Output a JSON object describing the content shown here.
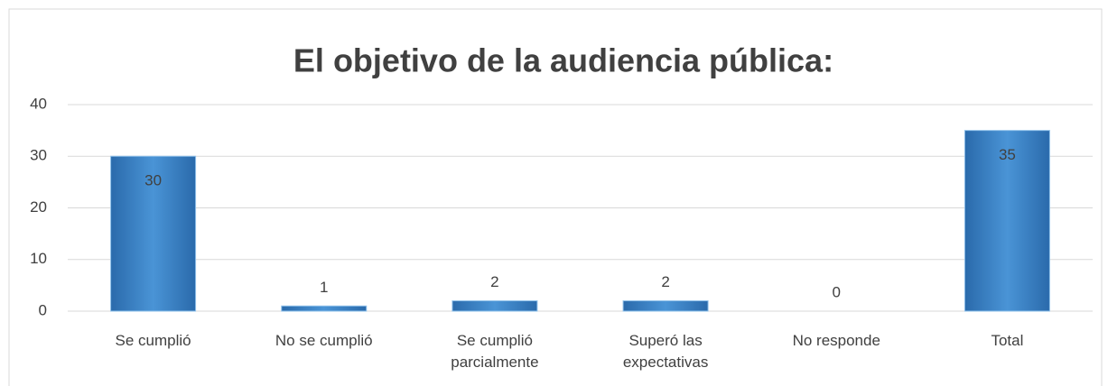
{
  "chart_data": {
    "type": "bar",
    "title": "El objetivo de la audiencia pública:",
    "categories": [
      "Se cumplió",
      "No se cumplió",
      "Se cumplió parcialmente",
      "Superó las expectativas",
      "No responde",
      "Total"
    ],
    "values": [
      30,
      1,
      2,
      2,
      0,
      35
    ],
    "color": "#3f86c8",
    "ylim": [
      0,
      40
    ],
    "yticks": [
      0,
      10,
      20,
      30,
      40
    ],
    "grid": true
  }
}
